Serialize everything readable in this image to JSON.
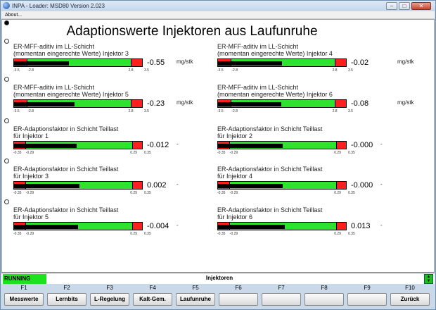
{
  "window": {
    "title": "INPA - Loader:  MSD80 Version 2.023",
    "min": "–",
    "max": "□",
    "close": "✕"
  },
  "menu": {
    "about": "About..."
  },
  "main_title": "Adaptionswerte Injektoren aus Laufunruhe",
  "panels": [
    {
      "line1": "ER-MFF-aditiv im LL-Schicht",
      "line2": "(momentan eingerechte Werte) Injektor 3",
      "value": "-0.55",
      "unit": "mg/stk",
      "min": -3.5,
      "max": 3.5,
      "low": -2.8,
      "high": 2.8,
      "fill": -0.55,
      "t_min": "-3.5",
      "t_low": "-2.8",
      "t_high": "2.8",
      "t_max": "3.5"
    },
    {
      "line1": "ER-MFF-aditiv im LL-Schicht",
      "line2": "(momentan eingerechte Werte) Injektor 4",
      "value": "-0.02",
      "unit": "mg/stk",
      "min": -3.5,
      "max": 3.5,
      "low": -2.8,
      "high": 2.8,
      "fill": -0.02,
      "t_min": "-3.5",
      "t_low": "-2.8",
      "t_high": "2.8",
      "t_max": "3.5"
    },
    {
      "line1": "ER-MFF-aditiv im LL-Schicht",
      "line2": "(momentan eingerechte Werte) Injektor 5",
      "value": "-0.23",
      "unit": "mg/stk",
      "min": -3.5,
      "max": 3.5,
      "low": -2.8,
      "high": 2.8,
      "fill": -0.23,
      "t_min": "-3.5",
      "t_low": "-2.8",
      "t_high": "2.8",
      "t_max": "3.5"
    },
    {
      "line1": "ER-MFF-aditiv im LL-Schicht",
      "line2": "(momentan eingerechte Werte) Injektor 6",
      "value": "-0.08",
      "unit": "mg/stk",
      "min": -3.5,
      "max": 3.5,
      "low": -2.8,
      "high": 2.8,
      "fill": -0.08,
      "t_min": "-3.5",
      "t_low": "-2.8",
      "t_high": "2.8",
      "t_max": "3.5"
    },
    {
      "line1": "ER-Adaptionsfaktor in Schicht Teillast",
      "line2": "für Injektor 1",
      "value": "-0.012",
      "unit": "-",
      "min": -0.35,
      "max": 0.35,
      "low": -0.29,
      "high": 0.29,
      "fill": -0.012,
      "t_min": "-0.35",
      "t_low": "-0.29",
      "t_high": "0.29",
      "t_max": "0.35"
    },
    {
      "line1": "ER-Adaptionsfaktor in Schicht Teillast",
      "line2": "für Injektor 2",
      "value": "-0.000",
      "unit": "-",
      "min": -0.35,
      "max": 0.35,
      "low": -0.29,
      "high": 0.29,
      "fill": 0.0,
      "t_min": "-0.35",
      "t_low": "-0.29",
      "t_high": "0.29",
      "t_max": "0.35"
    },
    {
      "line1": "ER-Adaptionsfaktor in Schicht Teillast",
      "line2": "für Injektor 3",
      "value": "0.002",
      "unit": "-",
      "min": -0.35,
      "max": 0.35,
      "low": -0.29,
      "high": 0.29,
      "fill": 0.002,
      "t_min": "-0.35",
      "t_low": "-0.29",
      "t_high": "0.29",
      "t_max": "0.35"
    },
    {
      "line1": "ER-Adaptionsfaktor in Schicht Teillast",
      "line2": "für Injektor 4",
      "value": "-0.000",
      "unit": "-",
      "min": -0.35,
      "max": 0.35,
      "low": -0.29,
      "high": 0.29,
      "fill": 0.0,
      "t_min": "-0.35",
      "t_low": "-0.29",
      "t_high": "0.29",
      "t_max": "0.35"
    },
    {
      "line1": "ER-Adaptionsfaktor in Schicht Teillast",
      "line2": "für Injektor 5",
      "value": "-0.004",
      "unit": "-",
      "min": -0.35,
      "max": 0.35,
      "low": -0.29,
      "high": 0.29,
      "fill": -0.004,
      "t_min": "-0.35",
      "t_low": "-0.29",
      "t_high": "0.29",
      "t_max": "0.35"
    },
    {
      "line1": "ER-Adaptionsfaktor in Schicht Teillast",
      "line2": "für Injektor 6",
      "value": "0.013",
      "unit": "-",
      "min": -0.35,
      "max": 0.35,
      "low": -0.29,
      "high": 0.29,
      "fill": 0.013,
      "t_min": "-0.35",
      "t_low": "-0.29",
      "t_high": "0.29",
      "t_max": "0.35"
    }
  ],
  "status": {
    "running": "RUNNING",
    "section": "Injektoren"
  },
  "fkeys": [
    {
      "key": "F1",
      "label": "Messwerte"
    },
    {
      "key": "F2",
      "label": "Lernbits"
    },
    {
      "key": "F3",
      "label": "L-Regelung"
    },
    {
      "key": "F4",
      "label": "Kalt-Gem."
    },
    {
      "key": "F5",
      "label": "Laufunruhe"
    },
    {
      "key": "F6",
      "label": ""
    },
    {
      "key": "F7",
      "label": ""
    },
    {
      "key": "F8",
      "label": ""
    },
    {
      "key": "F9",
      "label": ""
    },
    {
      "key": "F10",
      "label": "Zurück"
    }
  ],
  "colors": {
    "bar_ok": "#2fe22f",
    "bar_limit": "#ff1f1f",
    "running": "#1fe21f"
  }
}
